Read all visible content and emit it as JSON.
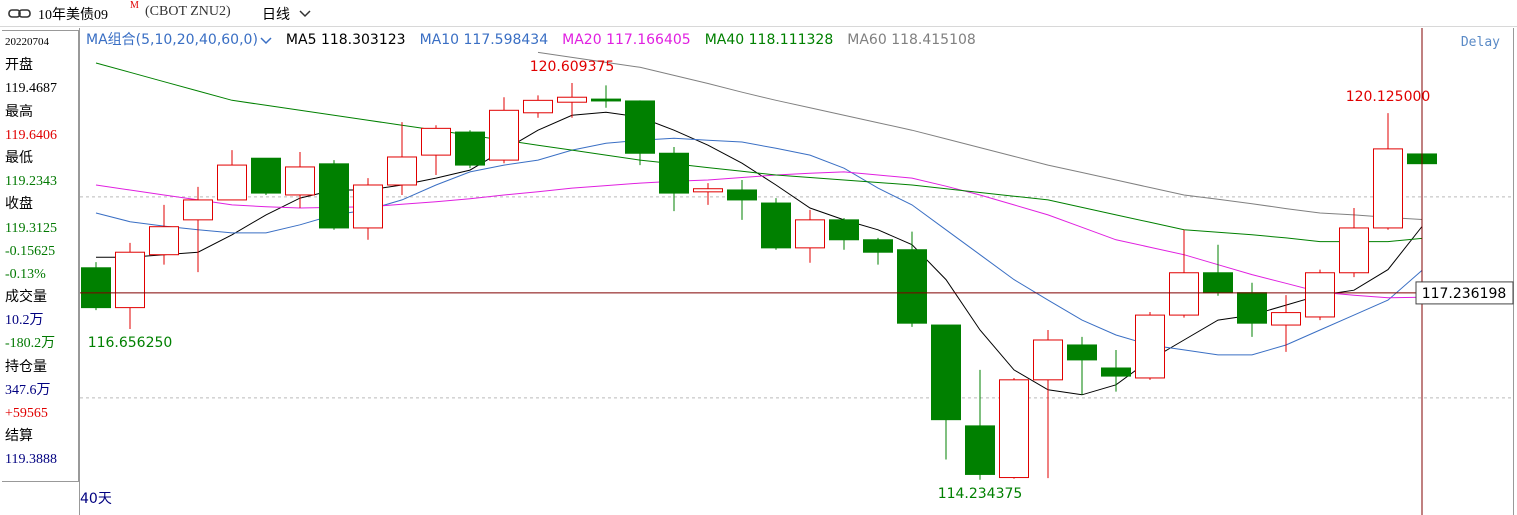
{
  "header": {
    "title": "10年美债09",
    "badge": "M",
    "code": "(CBOT ZNU2)",
    "period": "日线"
  },
  "info_panel": [
    {
      "text": "20220704",
      "color": "#000000"
    },
    {
      "text": "开盘",
      "color": "#000000"
    },
    {
      "text": "119.4687",
      "color": "#000000"
    },
    {
      "text": "最高",
      "color": "#000000"
    },
    {
      "text": "119.6406",
      "color": "#e00000"
    },
    {
      "text": "最低",
      "color": "#000000"
    },
    {
      "text": "119.2343",
      "color": "#007800"
    },
    {
      "text": "收盘",
      "color": "#000000"
    },
    {
      "text": "119.3125",
      "color": "#007800"
    },
    {
      "text": "-0.15625",
      "color": "#007800"
    },
    {
      "text": "-0.13%",
      "color": "#007800"
    },
    {
      "text": "成交量",
      "color": "#000000"
    },
    {
      "text": "10.2万",
      "color": "#000080"
    },
    {
      "text": "-180.2万",
      "color": "#007800"
    },
    {
      "text": "持仓量",
      "color": "#000000"
    },
    {
      "text": "347.6万",
      "color": "#000080"
    },
    {
      "text": "+59565",
      "color": "#e00000"
    },
    {
      "text": "结算",
      "color": "#000000"
    },
    {
      "text": "119.3888",
      "color": "#000080"
    }
  ],
  "chart_data": {
    "type": "candlestick",
    "ma_label": "MA组合(5,10,20,40,60,0)",
    "delay": "Delay",
    "period_count": "40天",
    "up_color": "#e00000",
    "down_color": "#008000",
    "ylim": [
      114.07,
      121.46
    ],
    "gridlines": [
      118.78,
      115.55
    ],
    "crosshair": 117.236198,
    "candles": [
      {
        "open": 117.64,
        "high": 117.73,
        "low": 116.96,
        "close": 117.0
      },
      {
        "open": 117.0,
        "high": 118.04,
        "low": 116.65625,
        "close": 117.89
      },
      {
        "open": 117.85,
        "high": 118.65,
        "low": 117.69,
        "close": 118.3
      },
      {
        "open": 118.41,
        "high": 118.94,
        "low": 117.57,
        "close": 118.73
      },
      {
        "open": 118.73,
        "high": 119.53,
        "low": 118.73,
        "close": 119.29
      },
      {
        "open": 119.4,
        "high": 119.4,
        "low": 118.81,
        "close": 118.84
      },
      {
        "open": 118.81,
        "high": 119.5,
        "low": 118.6,
        "close": 119.26
      },
      {
        "open": 119.31,
        "high": 119.37,
        "low": 118.25,
        "close": 118.28
      },
      {
        "open": 118.28,
        "high": 119.08,
        "low": 118.09,
        "close": 118.97
      },
      {
        "open": 118.97,
        "high": 119.98,
        "low": 118.81,
        "close": 119.42
      },
      {
        "open": 119.45,
        "high": 119.93,
        "low": 119.13,
        "close": 119.88
      },
      {
        "open": 119.82,
        "high": 119.85,
        "low": 119.24,
        "close": 119.29
      },
      {
        "open": 119.37,
        "high": 120.38,
        "low": 119.32,
        "close": 120.17
      },
      {
        "open": 120.13,
        "high": 120.41,
        "low": 120.05,
        "close": 120.33
      },
      {
        "open": 120.3,
        "high": 120.609375,
        "low": 120.05,
        "close": 120.38
      },
      {
        "open": 120.35,
        "high": 120.57,
        "low": 120.21,
        "close": 120.32
      },
      {
        "open": 120.32,
        "high": 120.33,
        "low": 119.29,
        "close": 119.48
      },
      {
        "open": 119.48,
        "high": 119.58,
        "low": 118.55,
        "close": 118.84
      },
      {
        "open": 118.86,
        "high": 119.0,
        "low": 118.65,
        "close": 118.91
      },
      {
        "open": 118.89,
        "high": 119.05,
        "low": 118.41,
        "close": 118.73
      },
      {
        "open": 118.68,
        "high": 118.76,
        "low": 117.93,
        "close": 117.96
      },
      {
        "open": 117.96,
        "high": 118.57,
        "low": 117.72,
        "close": 118.41
      },
      {
        "open": 118.41,
        "high": 118.44,
        "low": 117.93,
        "close": 118.09
      },
      {
        "open": 118.09,
        "high": 118.12,
        "low": 117.69,
        "close": 117.89
      },
      {
        "open": 117.93,
        "high": 118.22,
        "low": 116.69,
        "close": 116.75
      },
      {
        "open": 116.72,
        "high": 116.72,
        "low": 114.56,
        "close": 115.2
      },
      {
        "open": 115.1,
        "high": 116.0,
        "low": 114.234375,
        "close": 114.32
      },
      {
        "open": 114.27,
        "high": 115.87,
        "low": 114.25,
        "close": 115.84
      },
      {
        "open": 115.84,
        "high": 116.64,
        "low": 114.26,
        "close": 116.48
      },
      {
        "open": 116.4,
        "high": 116.53,
        "low": 115.6,
        "close": 116.16
      },
      {
        "open": 116.03,
        "high": 116.32,
        "low": 115.65,
        "close": 115.9
      },
      {
        "open": 115.87,
        "high": 116.93,
        "low": 115.84,
        "close": 116.88
      },
      {
        "open": 116.88,
        "high": 118.25,
        "low": 116.84,
        "close": 117.56
      },
      {
        "open": 117.56,
        "high": 118.01,
        "low": 117.19,
        "close": 117.24
      },
      {
        "open": 117.24,
        "high": 117.4,
        "low": 116.53,
        "close": 116.75
      },
      {
        "open": 116.72,
        "high": 117.2,
        "low": 116.29,
        "close": 116.92
      },
      {
        "open": 116.85,
        "high": 117.61,
        "low": 116.8,
        "close": 117.56
      },
      {
        "open": 117.56,
        "high": 118.6,
        "low": 117.49,
        "close": 118.28
      },
      {
        "open": 118.28,
        "high": 120.125,
        "low": 118.25,
        "close": 119.55
      },
      {
        "open": 119.4687,
        "high": 119.6406,
        "low": 119.2343,
        "close": 119.3125
      }
    ],
    "annotations": [
      {
        "value": 120.609375,
        "label": "120.609375"
      },
      {
        "value": 120.125,
        "label": "120.125000"
      },
      {
        "value": 116.65625,
        "label": "116.656250"
      },
      {
        "value": 114.234375,
        "label": "114.234375"
      }
    ],
    "series": [
      {
        "name": "MA5",
        "color": "#000000",
        "values": [
          117.81,
          117.81,
          117.85,
          117.89,
          118.17,
          118.49,
          118.76,
          118.89,
          118.89,
          118.97,
          119.08,
          119.21,
          119.53,
          119.85,
          120.09,
          120.14,
          120.06,
          119.85,
          119.61,
          119.32,
          118.97,
          118.6,
          118.41,
          118.25,
          118.01,
          117.45,
          116.64,
          116.0,
          115.68,
          115.6,
          115.76,
          116.16,
          116.48,
          116.8,
          116.88,
          117.04,
          117.2,
          117.28,
          117.61,
          118.303123
        ]
      },
      {
        "name": "MA10",
        "color": "#3a6fc4",
        "values": [
          118.52,
          118.38,
          118.31,
          118.25,
          118.2,
          118.2,
          118.33,
          118.49,
          118.57,
          118.73,
          118.97,
          119.18,
          119.29,
          119.37,
          119.53,
          119.64,
          119.69,
          119.72,
          119.69,
          119.66,
          119.56,
          119.45,
          119.24,
          118.92,
          118.65,
          118.25,
          117.85,
          117.45,
          117.12,
          116.8,
          116.56,
          116.4,
          116.32,
          116.24,
          116.24,
          116.4,
          116.64,
          116.88,
          117.12,
          117.598434
        ]
      },
      {
        "name": "MA20",
        "color": "#e020e0",
        "values": [
          118.97,
          118.89,
          118.81,
          118.73,
          118.65,
          118.62,
          118.6,
          118.61,
          118.62,
          118.66,
          118.7,
          118.75,
          118.81,
          118.86,
          118.92,
          118.96,
          119.0,
          119.03,
          119.05,
          119.09,
          119.13,
          119.16,
          119.18,
          119.13,
          119.08,
          118.95,
          118.81,
          118.65,
          118.49,
          118.29,
          118.09,
          117.97,
          117.85,
          117.69,
          117.53,
          117.39,
          117.25,
          117.2,
          117.16,
          117.166405
        ]
      },
      {
        "name": "MA40",
        "color": "#008000",
        "values": [
          120.93,
          120.78,
          120.63,
          120.48,
          120.33,
          120.25,
          120.17,
          120.09,
          120.01,
          119.93,
          119.85,
          119.77,
          119.69,
          119.61,
          119.53,
          119.45,
          119.37,
          119.31,
          119.25,
          119.19,
          119.13,
          119.09,
          119.05,
          119.01,
          118.97,
          118.91,
          118.85,
          118.79,
          118.73,
          118.61,
          118.49,
          118.37,
          118.25,
          118.21,
          118.17,
          118.12,
          118.06,
          118.06,
          118.06,
          118.111328
        ]
      },
      {
        "name": "MA60",
        "color": "#808080",
        "values": [
          null,
          null,
          null,
          null,
          null,
          null,
          null,
          null,
          null,
          null,
          null,
          null,
          null,
          121.1,
          121.02,
          120.94,
          120.86,
          120.73,
          120.6,
          120.46,
          120.33,
          120.21,
          120.09,
          119.97,
          119.85,
          119.71,
          119.57,
          119.43,
          119.29,
          119.17,
          119.05,
          118.93,
          118.81,
          118.74,
          118.67,
          118.59,
          118.52,
          118.49,
          118.45,
          118.415108
        ]
      }
    ]
  }
}
